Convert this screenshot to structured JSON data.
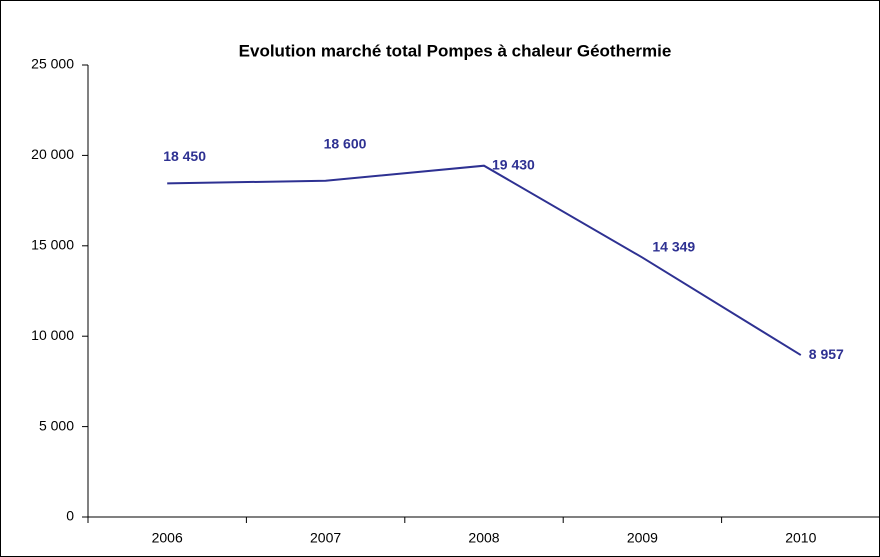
{
  "chart_data": {
    "type": "line",
    "title": "Evolution marché total Pompes à chaleur Géothermie",
    "categories": [
      "2006",
      "2007",
      "2008",
      "2009",
      "2010"
    ],
    "series": [
      {
        "name": null,
        "color": "#2e3192",
        "values": [
          18450,
          18600,
          19430,
          14349,
          8957
        ],
        "value_labels": [
          "18 450",
          "18 600",
          "19 430",
          "14 349",
          "8 957"
        ]
      }
    ],
    "ylim": [
      0,
      25000
    ],
    "yticks": [
      0,
      {
        "value": 5000,
        "label": "5 000"
      },
      {
        "value": 10000,
        "label": "10 000"
      },
      {
        "value": 15000,
        "label": "15 000"
      },
      {
        "value": 20000,
        "label": "20 000"
      },
      {
        "value": 25000,
        "label": "25 000"
      }
    ],
    "grid": false
  }
}
